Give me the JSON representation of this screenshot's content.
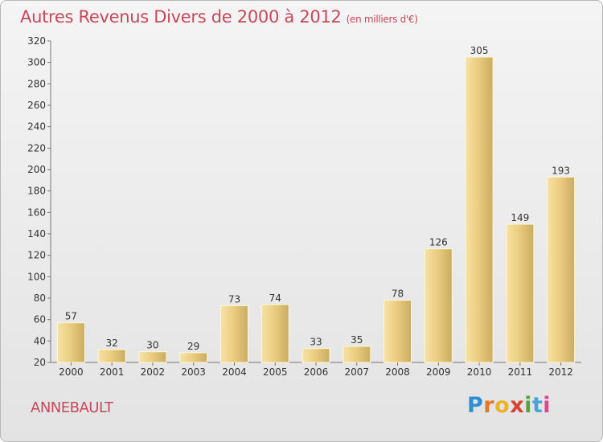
{
  "header": {
    "title": "Autres Revenus Divers de 2000 à 2012",
    "subtitle": "(en milliers d'€)"
  },
  "footer": {
    "city": "ANNEBAULT",
    "logo": "Proxiti"
  },
  "colors": {
    "title": "#c8475b",
    "bar_light": "#f5dea0",
    "bar_dark": "#c8ac60"
  },
  "chart_data": {
    "type": "bar",
    "title": "Autres Revenus Divers de 2000 à 2012",
    "subtitle": "(en milliers d'€)",
    "xlabel": "",
    "ylabel": "",
    "categories": [
      "2000",
      "2001",
      "2002",
      "2003",
      "2004",
      "2005",
      "2006",
      "2007",
      "2008",
      "2009",
      "2010",
      "2011",
      "2012"
    ],
    "values": [
      57,
      32,
      30,
      29,
      73,
      74,
      33,
      35,
      78,
      126,
      305,
      149,
      193
    ],
    "ylim": [
      20,
      320
    ],
    "yticks": [
      20,
      40,
      60,
      80,
      100,
      120,
      140,
      160,
      180,
      200,
      220,
      240,
      260,
      280,
      300,
      320
    ],
    "grid": false,
    "data_labels": true
  }
}
